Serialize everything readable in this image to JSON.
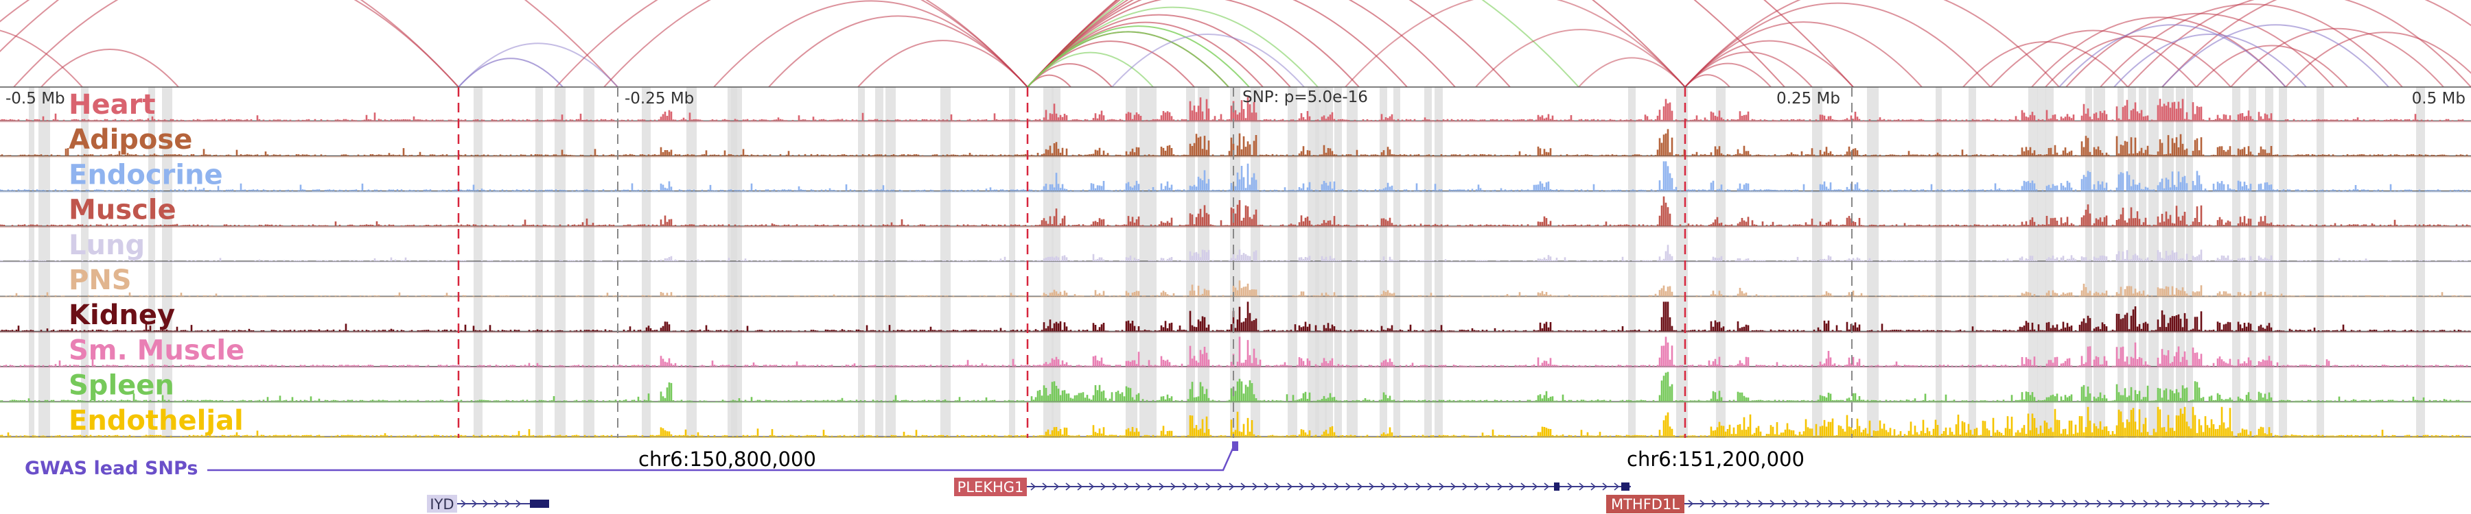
{
  "axis": {
    "ticks": [
      "-0.5 Mb",
      "-0.25 Mb",
      "0.25 Mb",
      "0.5 Mb"
    ],
    "snp_label": "SNP: p=5.0e-16"
  },
  "tracks": [
    {
      "name": "Heart",
      "color": "#d9636f"
    },
    {
      "name": "Adipose",
      "color": "#b5633b"
    },
    {
      "name": "Endocrine",
      "color": "#8fb3ef"
    },
    {
      "name": "Muscle",
      "color": "#c0564d"
    },
    {
      "name": "Lung",
      "color": "#d3cde8"
    },
    {
      "name": "PNS",
      "color": "#e1b58f"
    },
    {
      "name": "Kidney",
      "color": "#6b0f16"
    },
    {
      "name": "Sm. Muscle",
      "color": "#e97fb4"
    },
    {
      "name": "Spleen",
      "color": "#76c95a"
    },
    {
      "name": "Endotheljal",
      "color": "#f5c400"
    }
  ],
  "coordinates": [
    "chr6:150,800,000",
    "chr6:151,200,000"
  ],
  "gwas": {
    "label": "GWAS lead SNPs",
    "color": "#6a4fc9"
  },
  "genes": [
    {
      "name": "IYD",
      "box_color": "#d6d2ec",
      "text_color": "#333355"
    },
    {
      "name": "PLEKHG1",
      "box_color": "#c9585f",
      "text_color": "#ffffff"
    },
    {
      "name": "MTHFD1L",
      "box_color": "#c0524f",
      "text_color": "#ffffff"
    }
  ],
  "colors": {
    "loop": "#c0394a",
    "loop_alt_purple": "#8a79c9",
    "loop_alt_green": "#7ccf5a",
    "highlight": "#dddddd",
    "red_dash": "#d7263d",
    "gray_dash": "#888888",
    "gene_line": "#3a3a8c"
  }
}
